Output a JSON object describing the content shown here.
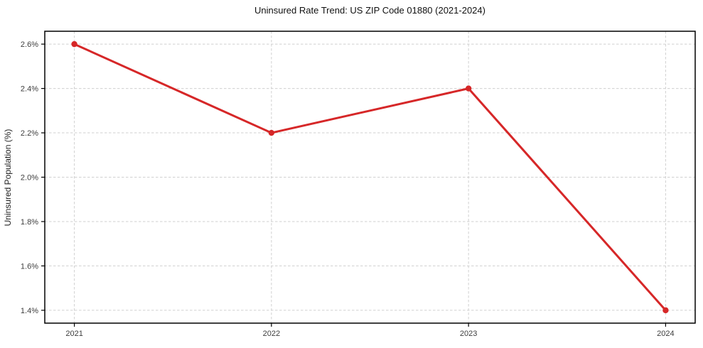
{
  "chart_data": {
    "type": "line",
    "title": "Uninsured Rate Trend: US ZIP Code 01880 (2021-2024)",
    "xlabel": "",
    "ylabel": "Uninsured Population (%)",
    "categories": [
      "2021",
      "2022",
      "2023",
      "2024"
    ],
    "x": [
      2021,
      2022,
      2023,
      2024
    ],
    "values": [
      2.6,
      2.2,
      2.4,
      1.4
    ],
    "y_ticks": [
      1.4,
      1.6,
      1.8,
      2.0,
      2.2,
      2.4,
      2.6
    ],
    "y_tick_labels": [
      "1.4%",
      "1.6%",
      "1.8%",
      "2.0%",
      "2.2%",
      "2.4%",
      "2.6%"
    ],
    "xlim": [
      2020.85,
      2024.15
    ],
    "ylim": [
      1.342,
      2.658
    ],
    "grid": true,
    "legend_position": "none",
    "line_color": "#d62728",
    "marker": "circle",
    "grid_color": "#d0d0d0",
    "axis_color": "#000000",
    "tick_label_color": "#3d3d3d"
  }
}
